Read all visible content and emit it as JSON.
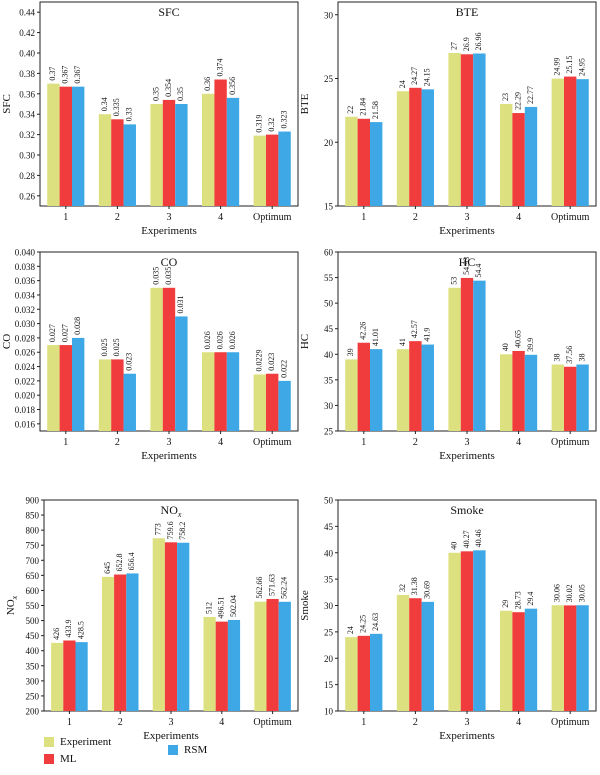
{
  "colors": {
    "Experiment": "#dde07e",
    "ML": "#f03c3c",
    "RSM": "#3ea8e6"
  },
  "legend": {
    "experiment": "Experiment",
    "ml": "ML",
    "rsm": "RSM"
  },
  "chart_data": [
    {
      "type": "bar",
      "title": "SFC",
      "xlabel": "Experiments",
      "ylabel": "SFC",
      "categories": [
        "1",
        "2",
        "3",
        "4",
        "Optimum"
      ],
      "ylim": [
        0.25,
        0.45
      ],
      "yticks": [
        "0.26",
        "0.28",
        "0.30",
        "0.32",
        "0.34",
        "0.36",
        "0.38",
        "0.40",
        "0.42",
        "0.44"
      ],
      "series": [
        {
          "name": "Experiment",
          "values": [
            0.37,
            0.34,
            0.35,
            0.36,
            0.319
          ],
          "labels": [
            "0.37",
            "0.34",
            "0.35",
            "0.36",
            "0.319"
          ]
        },
        {
          "name": "ML",
          "values": [
            0.367,
            0.335,
            0.354,
            0.374,
            0.32
          ],
          "labels": [
            "0.367",
            "0.335",
            "0.354",
            "0.374",
            "0.32"
          ]
        },
        {
          "name": "RSM",
          "values": [
            0.367,
            0.33,
            0.35,
            0.356,
            0.323
          ],
          "labels": [
            "0.367",
            "0.33",
            "0.35",
            "0.356",
            "0.323"
          ]
        }
      ]
    },
    {
      "type": "bar",
      "title": "BTE",
      "xlabel": "Experiments",
      "ylabel": "BTE",
      "categories": [
        "1",
        "2",
        "3",
        "4",
        "Optimum"
      ],
      "ylim": [
        15,
        31
      ],
      "yticks": [
        "15",
        "20",
        "25",
        "30"
      ],
      "series": [
        {
          "name": "Experiment",
          "values": [
            22,
            24,
            27,
            23,
            24.99
          ],
          "labels": [
            "22",
            "24",
            "27",
            "23",
            "24.99"
          ]
        },
        {
          "name": "ML",
          "values": [
            21.84,
            24.27,
            26.9,
            22.29,
            25.15
          ],
          "labels": [
            "21.84",
            "24.27",
            "26.9",
            "22.29",
            "25.15"
          ]
        },
        {
          "name": "RSM",
          "values": [
            21.58,
            24.15,
            26.96,
            22.77,
            24.95
          ],
          "labels": [
            "21.58",
            "24.15",
            "26.96",
            "22.77",
            "24.95"
          ]
        }
      ]
    },
    {
      "type": "bar",
      "title": "CO",
      "xlabel": "Experiments",
      "ylabel": "CO",
      "categories": [
        "1",
        "2",
        "3",
        "4",
        "Optimum"
      ],
      "ylim": [
        0.015,
        0.04
      ],
      "yticks": [
        "0.016",
        "0.018",
        "0.020",
        "0.022",
        "0.024",
        "0.026",
        "0.028",
        "0.030",
        "0.032",
        "0.034",
        "0.036",
        "0.038",
        "0.040"
      ],
      "series": [
        {
          "name": "Experiment",
          "values": [
            0.027,
            0.025,
            0.035,
            0.026,
            0.0229
          ],
          "labels": [
            "0.027",
            "0.025",
            "0.035",
            "0.026",
            "0.0229"
          ]
        },
        {
          "name": "ML",
          "values": [
            0.027,
            0.025,
            0.035,
            0.026,
            0.023
          ],
          "labels": [
            "0.027",
            "0.025",
            "0.035",
            "0.026",
            "0.023"
          ]
        },
        {
          "name": "RSM",
          "values": [
            0.028,
            0.023,
            0.031,
            0.026,
            0.022
          ],
          "labels": [
            "0.028",
            "0.023",
            "0.031",
            "0.026",
            "0.022"
          ]
        }
      ]
    },
    {
      "type": "bar",
      "title": "HC",
      "xlabel": "Experiments",
      "ylabel": "HC",
      "categories": [
        "1",
        "2",
        "3",
        "4",
        "Optimum"
      ],
      "ylim": [
        25,
        60
      ],
      "yticks": [
        "25",
        "30",
        "35",
        "40",
        "45",
        "50",
        "55",
        "60"
      ],
      "series": [
        {
          "name": "Experiment",
          "values": [
            39,
            41,
            53,
            40,
            38
          ],
          "labels": [
            "39",
            "41",
            "53",
            "40",
            "38"
          ]
        },
        {
          "name": "ML",
          "values": [
            42.26,
            42.57,
            54.93,
            40.65,
            37.56
          ],
          "labels": [
            "42.26",
            "42.57",
            "54.93",
            "40.65",
            "37.56"
          ]
        },
        {
          "name": "RSM",
          "values": [
            41.01,
            41.9,
            54.4,
            39.9,
            38
          ],
          "labels": [
            "41.01",
            "41.9",
            "54.4",
            "39.9",
            "38"
          ]
        }
      ]
    },
    {
      "type": "bar",
      "title": "NOx",
      "xlabel": "Experiments",
      "ylabel": "NOx",
      "categories": [
        "1",
        "2",
        "3",
        "4",
        "Optimum"
      ],
      "ylim": [
        200,
        900
      ],
      "yticks": [
        "200",
        "250",
        "300",
        "350",
        "400",
        "450",
        "500",
        "550",
        "600",
        "650",
        "700",
        "750",
        "800",
        "850",
        "900"
      ],
      "series": [
        {
          "name": "Experiment",
          "values": [
            426,
            645,
            773,
            512,
            562.66
          ],
          "labels": [
            "426",
            "645",
            "773",
            "512",
            "562.66"
          ]
        },
        {
          "name": "ML",
          "values": [
            433.9,
            652.8,
            759.6,
            496.51,
            571.63
          ],
          "labels": [
            "433.9",
            "652.8",
            "759.6",
            "496.51",
            "571.63"
          ]
        },
        {
          "name": "RSM",
          "values": [
            428.5,
            656.4,
            758.2,
            502.04,
            562.24
          ],
          "labels": [
            "428.5",
            "656.4",
            "758.2",
            "502.04",
            "562.24"
          ]
        }
      ]
    },
    {
      "type": "bar",
      "title": "Smoke",
      "xlabel": "Experiments",
      "ylabel": "Smoke",
      "categories": [
        "1",
        "2",
        "3",
        "4",
        "Optimum"
      ],
      "ylim": [
        10,
        50
      ],
      "yticks": [
        "10",
        "15",
        "20",
        "25",
        "30",
        "35",
        "40",
        "45",
        "50"
      ],
      "series": [
        {
          "name": "Experiment",
          "values": [
            24,
            32,
            40,
            29,
            30.06
          ],
          "labels": [
            "24",
            "32",
            "40",
            "29",
            "30.06"
          ]
        },
        {
          "name": "ML",
          "values": [
            24.25,
            31.38,
            40.27,
            28.73,
            30.02
          ],
          "labels": [
            "24.25",
            "31.38",
            "40.27",
            "28.73",
            "30.02"
          ]
        },
        {
          "name": "RSM",
          "values": [
            24.63,
            30.69,
            40.46,
            29.4,
            30.05
          ],
          "labels": [
            "24.63",
            "30.69",
            "40.46",
            "29.4",
            "30.05"
          ]
        }
      ]
    }
  ]
}
